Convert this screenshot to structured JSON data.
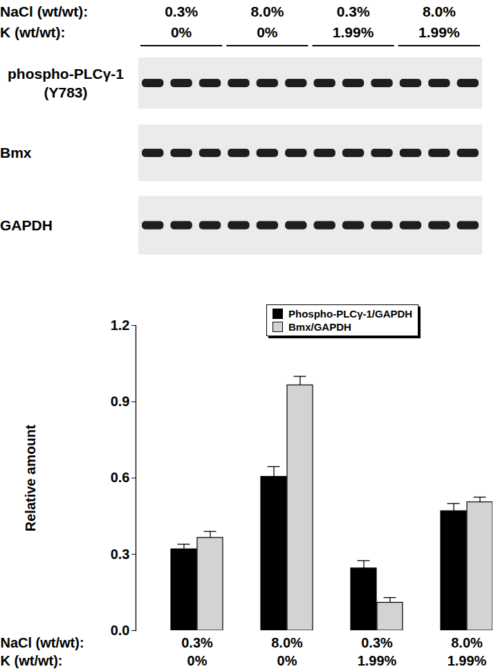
{
  "chart_data": {
    "type": "bar",
    "ylabel": "Relative amount",
    "category_rows": [
      "NaCl (wt/wt):",
      "K (wt/wt):"
    ],
    "categories": [
      [
        "0.3%",
        "0%"
      ],
      [
        "8.0%",
        "0%"
      ],
      [
        "0.3%",
        "1.99%"
      ],
      [
        "8.0%",
        "1.99%"
      ]
    ],
    "series": [
      {
        "name": "Phospho-PLCγ-1/GAPDH",
        "color": "#000000",
        "values": [
          0.32,
          0.605,
          0.245,
          0.47
        ],
        "errors": [
          0.02,
          0.04,
          0.03,
          0.03
        ]
      },
      {
        "name": "Bmx/GAPDH",
        "color": "#d3d3d3",
        "values": [
          0.365,
          0.965,
          0.11,
          0.505
        ],
        "errors": [
          0.025,
          0.035,
          0.02,
          0.02
        ]
      }
    ],
    "ylim": [
      0,
      1.2
    ],
    "yticks": [
      {
        "value": 0,
        "label": "0.0"
      },
      0.3,
      0.6,
      0.9,
      1.2
    ],
    "legend": "top",
    "grid": false
  },
  "blot": {
    "header_rows": [
      {
        "label": "NaCl (wt/wt):",
        "groups": [
          "0.3%",
          "8.0%",
          "0.3%",
          "8.0%"
        ]
      },
      {
        "label": "K (wt/wt):",
        "groups": [
          "0%",
          "0%",
          "1.99%",
          "1.99%"
        ]
      }
    ],
    "lanes_per_group": 3,
    "panels": [
      [
        "phospho-PLCγ-1",
        "(Y783)"
      ],
      [
        "Bmx"
      ],
      [
        "GAPDH"
      ]
    ]
  }
}
